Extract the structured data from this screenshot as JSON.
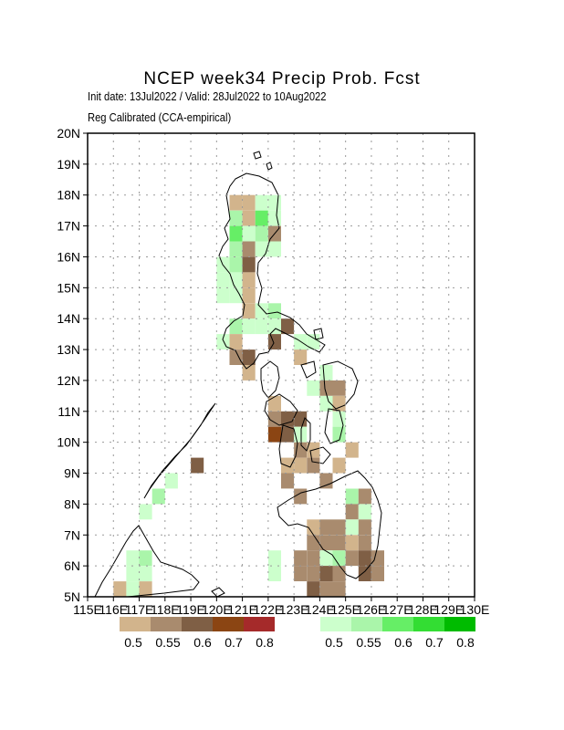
{
  "header": {
    "title": "NCEP week34 Precip Prob. Fcst",
    "subtitle1": "Init date: 13Jul2022 / Valid: 28Jul2022 to 10Aug2022",
    "subtitle2": "Reg Calibrated (CCA-empirical)"
  },
  "axes": {
    "lat_labels": [
      "5N",
      "6N",
      "7N",
      "8N",
      "9N",
      "10N",
      "11N",
      "12N",
      "13N",
      "14N",
      "15N",
      "16N",
      "17N",
      "18N",
      "19N",
      "20N"
    ],
    "lon_labels": [
      "115E",
      "116E",
      "117E",
      "118E",
      "119E",
      "120E",
      "121E",
      "122E",
      "123E",
      "124E",
      "125E",
      "126E",
      "127E",
      "128E",
      "129E",
      "130E"
    ]
  },
  "legend": {
    "dry": {
      "labels": [
        "0.5",
        "0.55",
        "0.6",
        "0.7",
        "0.8"
      ],
      "colors": [
        "#d2b48c",
        "#a98b6e",
        "#7f5f45",
        "#8b4513",
        "#a52a2a"
      ]
    },
    "wet": {
      "labels": [
        "0.5",
        "0.55",
        "0.6",
        "0.7",
        "0.8"
      ],
      "colors": [
        "#ccffcc",
        "#aaf5aa",
        "#66ee66",
        "#33dd33",
        "#00bb00"
      ]
    }
  }
}
